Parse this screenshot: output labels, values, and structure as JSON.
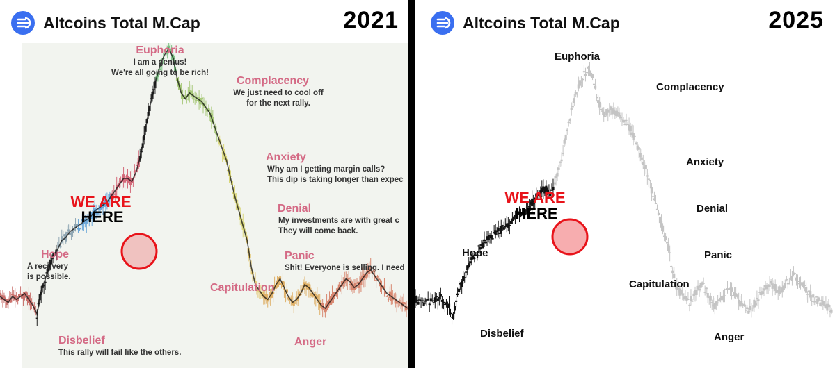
{
  "left": {
    "title": "Altcoins Total M.Cap",
    "year": "2021",
    "marker": {
      "line1": "WE ARE",
      "line2": "HERE"
    },
    "phases": [
      {
        "name": "Euphoria",
        "lines": [
          "I am a genius!",
          "We're all going to be rich!"
        ]
      },
      {
        "name": "Complacency",
        "lines": [
          "We just need to cool off",
          "for the next rally."
        ]
      },
      {
        "name": "Anxiety",
        "lines": [
          "Why am I getting margin calls?",
          "This dip is taking longer than expec"
        ]
      },
      {
        "name": "Denial",
        "lines": [
          "My investments are with great c",
          "They will come back."
        ]
      },
      {
        "name": "Panic",
        "lines": [
          "Shit! Everyone is selling. I need"
        ]
      },
      {
        "name": "Capitulation",
        "lines": []
      },
      {
        "name": "Anger",
        "lines": []
      },
      {
        "name": "Hope",
        "lines": [
          "A recovery",
          "is possible."
        ]
      },
      {
        "name": "Disbelief",
        "lines": [
          "This rally will fail like the others."
        ]
      }
    ],
    "colors": {
      "phase_label": "#d46a85",
      "marker_red": "#e8131a"
    }
  },
  "right": {
    "title": "Altcoins Total M.Cap",
    "year": "2025",
    "marker": {
      "line1": "WE ARE",
      "line2": "HERE"
    },
    "phases": [
      "Euphoria",
      "Complacency",
      "Anxiety",
      "Denial",
      "Panic",
      "Capitulation",
      "Anger",
      "Hope",
      "Disbelief"
    ],
    "colors": {
      "phase_label": "#111111",
      "marker_red": "#e8131a"
    }
  },
  "chart_data": [
    {
      "type": "line",
      "title": "Altcoins Total M.Cap 2021",
      "x": [
        0,
        1,
        2,
        3,
        4,
        5,
        6,
        7,
        8,
        9,
        10,
        11,
        12,
        13,
        14,
        15,
        16,
        17,
        18,
        19,
        20,
        21,
        22,
        23,
        24,
        25,
        26,
        27,
        28,
        29,
        30,
        31,
        32,
        33,
        34,
        35,
        36,
        37,
        38,
        39,
        40,
        41,
        42,
        43,
        44,
        45,
        46,
        47,
        48,
        49,
        50,
        51,
        52,
        53,
        54,
        55,
        56,
        57,
        58,
        59,
        60,
        61,
        62,
        63,
        64,
        65,
        66,
        67,
        68,
        69,
        70,
        71,
        72,
        73,
        74,
        75,
        76,
        77,
        78,
        79,
        80,
        81,
        82,
        83,
        84,
        85,
        86,
        87,
        88,
        89,
        90,
        91,
        92,
        93,
        94,
        95,
        96,
        97,
        98,
        99
      ],
      "series": [
        {
          "values": [
            16,
            15,
            14,
            16,
            15,
            16,
            17,
            15,
            13,
            10,
            18,
            22,
            26,
            30,
            32,
            35,
            36,
            38,
            39,
            40,
            41,
            42,
            43,
            45,
            46,
            47,
            48,
            50,
            52,
            54,
            56,
            56,
            55,
            58,
            63,
            70,
            78,
            84,
            90,
            95,
            98,
            100,
            97,
            90,
            85,
            83,
            85,
            84,
            83,
            82,
            80,
            78,
            74,
            70,
            66,
            62,
            56,
            50,
            45,
            40,
            35,
            26,
            20,
            18,
            16,
            15,
            17,
            20,
            22,
            19,
            16,
            14,
            15,
            17,
            20,
            19,
            17,
            15,
            13,
            12,
            14,
            16,
            18,
            20,
            22,
            21,
            19,
            20,
            22,
            24,
            25,
            23,
            21,
            19,
            17,
            16,
            15,
            14,
            13,
            12
          ]
        }
      ],
      "phases": [
        "Disbelief",
        "Hope",
        "Euphoria",
        "Complacency",
        "Anxiety",
        "Denial",
        "Panic",
        "Capitulation",
        "Anger"
      ]
    },
    {
      "type": "line",
      "title": "Altcoins Total M.Cap 2025",
      "x": [
        0,
        1,
        2,
        3,
        4,
        5,
        6,
        7,
        8,
        9,
        10,
        11,
        12,
        13,
        14,
        15,
        16,
        17,
        18,
        19,
        20,
        21,
        22,
        23,
        24,
        25,
        26,
        27,
        28,
        29,
        30,
        31,
        32,
        33,
        34,
        35,
        36,
        37,
        38,
        39,
        40,
        41,
        42,
        43,
        44,
        45,
        46,
        47,
        48,
        49,
        50,
        51,
        52,
        53,
        54,
        55,
        56,
        57,
        58,
        59,
        60,
        61,
        62,
        63,
        64,
        65,
        66,
        67,
        68,
        69,
        70,
        71,
        72,
        73,
        74,
        75,
        76,
        77,
        78,
        79,
        80,
        81,
        82,
        83,
        84,
        85,
        86,
        87,
        88,
        89,
        90,
        91,
        92,
        93,
        94,
        95,
        96,
        97,
        98,
        99
      ],
      "series": [
        {
          "values": [
            16,
            15,
            14,
            16,
            15,
            16,
            17,
            15,
            13,
            10,
            18,
            22,
            26,
            30,
            32,
            35,
            36,
            38,
            39,
            40,
            41,
            42,
            43,
            45,
            46,
            47,
            48,
            50,
            52,
            54,
            56,
            56,
            55,
            58,
            63,
            70,
            78,
            84,
            90,
            95,
            98,
            100,
            97,
            90,
            85,
            83,
            85,
            84,
            83,
            82,
            80,
            78,
            74,
            70,
            66,
            62,
            56,
            50,
            45,
            40,
            35,
            26,
            20,
            18,
            16,
            15,
            17,
            20,
            22,
            19,
            16,
            14,
            15,
            17,
            20,
            19,
            17,
            15,
            13,
            12,
            14,
            16,
            18,
            20,
            22,
            21,
            19,
            20,
            22,
            24,
            25,
            23,
            21,
            19,
            17,
            16,
            15,
            14,
            13,
            12
          ]
        }
      ],
      "current_index": 32,
      "phases": [
        "Disbelief",
        "Hope",
        "Euphoria",
        "Complacency",
        "Anxiety",
        "Denial",
        "Panic",
        "Capitulation",
        "Anger"
      ]
    }
  ]
}
